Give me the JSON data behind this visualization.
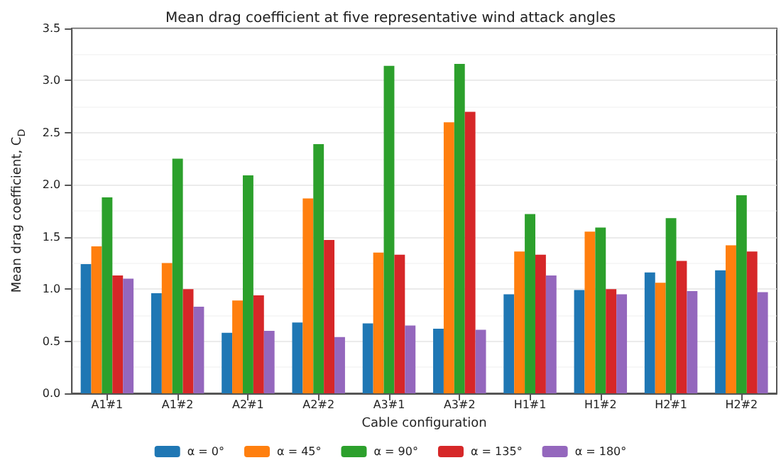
{
  "chart_data": {
    "type": "bar",
    "title": "Mean drag coefficient at five representative wind attack angles",
    "xlabel": "Cable configuration",
    "ylabel": "Mean drag coefficient, C$_{D}$",
    "categories": [
      "A1#1",
      "A1#2",
      "A2#1",
      "A2#2",
      "A3#1",
      "A3#2",
      "H1#1",
      "H1#2",
      "H2#1",
      "H2#2"
    ],
    "series": [
      {
        "name": "α = 0°",
        "color": "#1f77b4",
        "values": [
          1.24,
          0.96,
          0.58,
          0.68,
          0.67,
          0.62,
          0.95,
          0.99,
          1.16,
          1.18
        ]
      },
      {
        "name": "α = 45°",
        "color": "#ff7f0e",
        "values": [
          1.41,
          1.25,
          0.89,
          1.87,
          1.35,
          2.6,
          1.36,
          1.55,
          1.06,
          1.42
        ]
      },
      {
        "name": "α = 90°",
        "color": "#2ca02c",
        "values": [
          1.88,
          2.25,
          2.09,
          2.39,
          3.14,
          3.16,
          1.72,
          1.59,
          1.68,
          1.9
        ]
      },
      {
        "name": "α = 135°",
        "color": "#d62728",
        "values": [
          1.13,
          1.0,
          0.94,
          1.47,
          1.33,
          2.7,
          1.33,
          1.0,
          1.27,
          1.36
        ]
      },
      {
        "name": "α = 180°",
        "color": "#9467bd",
        "values": [
          1.1,
          0.83,
          0.6,
          0.54,
          0.65,
          0.61,
          1.13,
          0.95,
          0.98,
          0.97
        ]
      }
    ],
    "ylim": [
      0,
      3.5
    ],
    "yticks": [
      {
        "value": 0,
        "label": "0.0"
      },
      0.5,
      {
        "value": 1,
        "label": "1.0"
      },
      1.5,
      {
        "value": 2,
        "label": "2.0"
      },
      2.5,
      {
        "value": 3,
        "label": "3.0"
      },
      3.5
    ],
    "grid": "y",
    "legend": "bottom"
  }
}
